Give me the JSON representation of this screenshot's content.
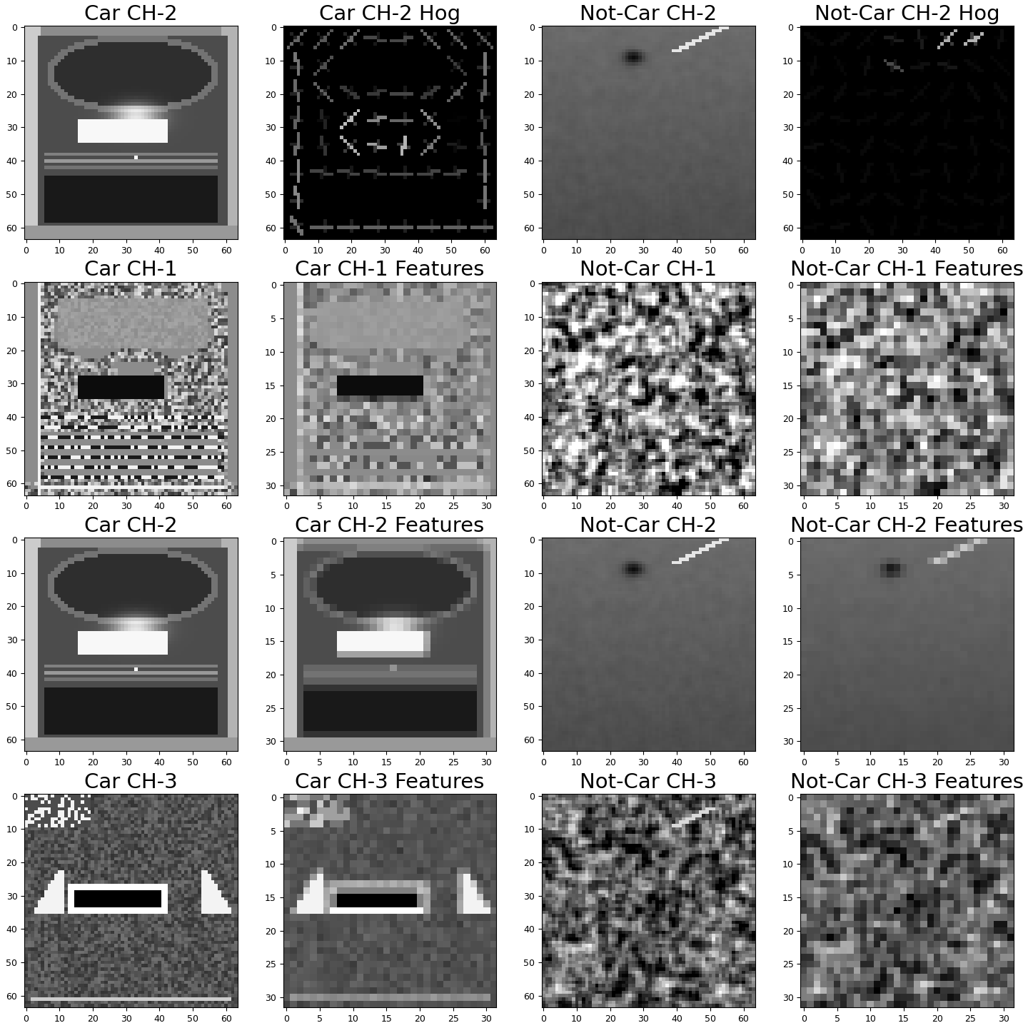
{
  "chart_data": [
    {
      "type": "image",
      "title": "Car CH-2",
      "xlim": [
        -0.5,
        63.5
      ],
      "ylim": [
        63.5,
        -0.5
      ],
      "xticks": [
        0,
        10,
        20,
        30,
        40,
        50,
        60
      ],
      "yticks": [
        0,
        10,
        20,
        30,
        40,
        50,
        60
      ]
    },
    {
      "type": "image",
      "title": "Car CH-2 Hog",
      "xlim": [
        -0.5,
        63.5
      ],
      "ylim": [
        63.5,
        -0.5
      ],
      "xticks": [
        0,
        10,
        20,
        30,
        40,
        50,
        60
      ],
      "yticks": [
        0,
        10,
        20,
        30,
        40,
        50,
        60
      ]
    },
    {
      "type": "image",
      "title": "Not-Car CH-2",
      "xlim": [
        -0.5,
        63.5
      ],
      "ylim": [
        63.5,
        -0.5
      ],
      "xticks": [
        0,
        10,
        20,
        30,
        40,
        50,
        60
      ],
      "yticks": [
        0,
        10,
        20,
        30,
        40,
        50,
        60
      ]
    },
    {
      "type": "image",
      "title": "Not-Car CH-2 Hog",
      "xlim": [
        -0.5,
        63.5
      ],
      "ylim": [
        63.5,
        -0.5
      ],
      "xticks": [
        0,
        10,
        20,
        30,
        40,
        50,
        60
      ],
      "yticks": [
        0,
        10,
        20,
        30,
        40,
        50,
        60
      ]
    },
    {
      "type": "image",
      "title": "Car CH-1",
      "xlim": [
        -0.5,
        63.5
      ],
      "ylim": [
        63.5,
        -0.5
      ],
      "xticks": [
        0,
        10,
        20,
        30,
        40,
        50,
        60
      ],
      "yticks": [
        0,
        10,
        20,
        30,
        40,
        50,
        60
      ]
    },
    {
      "type": "image",
      "title": "Car CH-1 Features",
      "xlim": [
        -0.5,
        31.5
      ],
      "ylim": [
        31.5,
        -0.5
      ],
      "xticks": [
        0,
        5,
        10,
        15,
        20,
        25,
        30
      ],
      "yticks": [
        0,
        5,
        10,
        15,
        20,
        25,
        30
      ]
    },
    {
      "type": "image",
      "title": "Not-Car CH-1",
      "xlim": [
        -0.5,
        63.5
      ],
      "ylim": [
        63.5,
        -0.5
      ],
      "xticks": [
        0,
        10,
        20,
        30,
        40,
        50,
        60
      ],
      "yticks": [
        0,
        10,
        20,
        30,
        40,
        50,
        60
      ]
    },
    {
      "type": "image",
      "title": "Not-Car CH-1 Features",
      "xlim": [
        -0.5,
        31.5
      ],
      "ylim": [
        31.5,
        -0.5
      ],
      "xticks": [
        0,
        5,
        10,
        15,
        20,
        25,
        30
      ],
      "yticks": [
        0,
        5,
        10,
        15,
        20,
        25,
        30
      ]
    },
    {
      "type": "image",
      "title": "Car CH-2",
      "xlim": [
        -0.5,
        63.5
      ],
      "ylim": [
        63.5,
        -0.5
      ],
      "xticks": [
        0,
        10,
        20,
        30,
        40,
        50,
        60
      ],
      "yticks": [
        0,
        10,
        20,
        30,
        40,
        50,
        60
      ]
    },
    {
      "type": "image",
      "title": "Car CH-2 Features",
      "xlim": [
        -0.5,
        31.5
      ],
      "ylim": [
        31.5,
        -0.5
      ],
      "xticks": [
        0,
        5,
        10,
        15,
        20,
        25,
        30
      ],
      "yticks": [
        0,
        5,
        10,
        15,
        20,
        25,
        30
      ]
    },
    {
      "type": "image",
      "title": "Not-Car CH-2",
      "xlim": [
        -0.5,
        63.5
      ],
      "ylim": [
        63.5,
        -0.5
      ],
      "xticks": [
        0,
        10,
        20,
        30,
        40,
        50,
        60
      ],
      "yticks": [
        0,
        10,
        20,
        30,
        40,
        50,
        60
      ]
    },
    {
      "type": "image",
      "title": "Not-Car CH-2 Features",
      "xlim": [
        -0.5,
        31.5
      ],
      "ylim": [
        31.5,
        -0.5
      ],
      "xticks": [
        0,
        5,
        10,
        15,
        20,
        25,
        30
      ],
      "yticks": [
        0,
        5,
        10,
        15,
        20,
        25,
        30
      ]
    },
    {
      "type": "image",
      "title": "Car CH-3",
      "xlim": [
        -0.5,
        63.5
      ],
      "ylim": [
        63.5,
        -0.5
      ],
      "xticks": [
        0,
        10,
        20,
        30,
        40,
        50,
        60
      ],
      "yticks": [
        0,
        10,
        20,
        30,
        40,
        50,
        60
      ]
    },
    {
      "type": "image",
      "title": "Car CH-3 Features",
      "xlim": [
        -0.5,
        31.5
      ],
      "ylim": [
        31.5,
        -0.5
      ],
      "xticks": [
        0,
        5,
        10,
        15,
        20,
        25,
        30
      ],
      "yticks": [
        0,
        5,
        10,
        15,
        20,
        25,
        30
      ]
    },
    {
      "type": "image",
      "title": "Not-Car CH-3",
      "xlim": [
        -0.5,
        63.5
      ],
      "ylim": [
        63.5,
        -0.5
      ],
      "xticks": [
        0,
        10,
        20,
        30,
        40,
        50,
        60
      ],
      "yticks": [
        0,
        10,
        20,
        30,
        40,
        50,
        60
      ]
    },
    {
      "type": "image",
      "title": "Not-Car CH-3 Features",
      "xlim": [
        -0.5,
        31.5
      ],
      "ylim": [
        31.5,
        -0.5
      ],
      "xticks": [
        0,
        5,
        10,
        15,
        20,
        25,
        30
      ],
      "yticks": [
        0,
        5,
        10,
        15,
        20,
        25,
        30
      ]
    }
  ]
}
